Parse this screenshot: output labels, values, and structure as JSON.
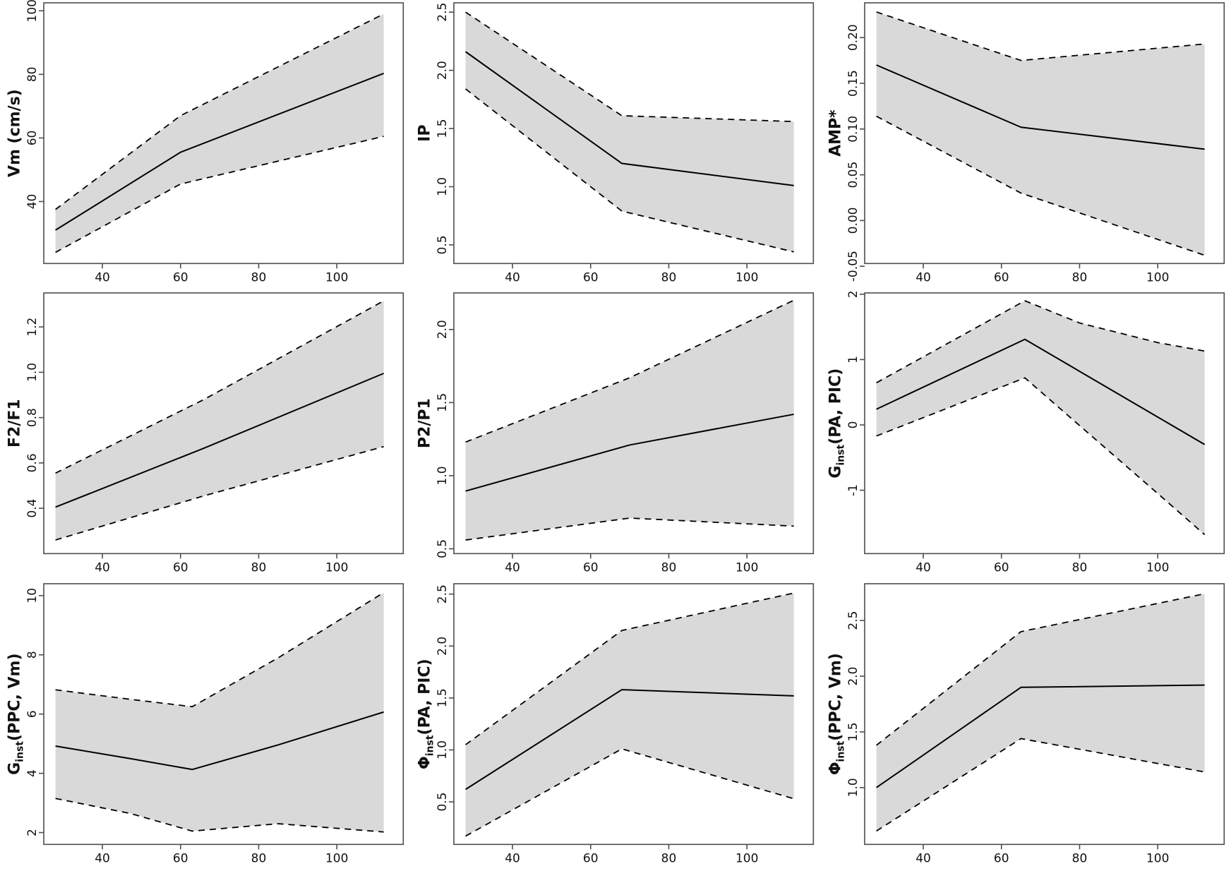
{
  "figure": {
    "title": "",
    "layout": "3x3 grid of effect plots with confidence bands",
    "background": "#ffffff",
    "band_fill": "#d9d9d9",
    "line_color": "#000000",
    "frame_color": "#4d4d4d",
    "text_color": "#111111",
    "grid": "off",
    "legend": "none",
    "x_tick_values": [
      40,
      60,
      80,
      100
    ],
    "x_tick_labels": [
      "40",
      "60",
      "80",
      "100"
    ]
  },
  "chart_data": [
    {
      "id": "vm_cms",
      "type": "line",
      "ylabel": "Vm (cm/s)",
      "ylabel_parts": [
        {
          "t": "Vm (cm/s)",
          "sub": false
        }
      ],
      "x": [
        28,
        60,
        112
      ],
      "series": [
        {
          "name": "estimate",
          "style": "solid",
          "values": [
            31,
            55.5,
            80.3
          ]
        },
        {
          "name": "upper-ci",
          "style": "dashed",
          "values": [
            37.5,
            67,
            99
          ]
        },
        {
          "name": "lower-ci",
          "style": "dashed",
          "values": [
            24,
            45.5,
            60.5
          ]
        }
      ],
      "band": true,
      "xlim": [
        25,
        117
      ],
      "ylim": [
        20.5,
        102.5
      ],
      "xticks": [
        40,
        60,
        80,
        100
      ],
      "ytick_values": [
        40,
        60,
        80,
        100
      ],
      "ytick_labels": [
        "40",
        "60",
        "80",
        "100"
      ]
    },
    {
      "id": "ip",
      "type": "line",
      "ylabel": "IP",
      "ylabel_parts": [
        {
          "t": "IP",
          "sub": false
        }
      ],
      "x": [
        28,
        68,
        112
      ],
      "series": [
        {
          "name": "estimate",
          "style": "solid",
          "values": [
            2.16,
            1.2,
            1.01
          ]
        },
        {
          "name": "upper-ci",
          "style": "dashed",
          "values": [
            2.5,
            1.61,
            1.56
          ]
        },
        {
          "name": "lower-ci",
          "style": "dashed",
          "values": [
            1.84,
            0.79,
            0.44
          ]
        }
      ],
      "band": true,
      "xlim": [
        25,
        117
      ],
      "ylim": [
        0.34,
        2.58
      ],
      "xticks": [
        40,
        60,
        80,
        100
      ],
      "ytick_values": [
        0.5,
        1.0,
        1.5,
        2.0,
        2.5
      ],
      "ytick_labels": [
        "0.5",
        "1.0",
        "1.5",
        "2.0",
        "2.5"
      ]
    },
    {
      "id": "amp_star",
      "type": "line",
      "ylabel": "AMP*",
      "ylabel_parts": [
        {
          "t": "AMP*",
          "sub": false
        }
      ],
      "x": [
        28,
        65,
        112
      ],
      "series": [
        {
          "name": "estimate",
          "style": "solid",
          "values": [
            0.17,
            0.102,
            0.078
          ]
        },
        {
          "name": "upper-ci",
          "style": "dashed",
          "values": [
            0.228,
            0.175,
            0.193
          ]
        },
        {
          "name": "lower-ci",
          "style": "dashed",
          "values": [
            0.114,
            0.03,
            -0.038
          ]
        }
      ],
      "band": true,
      "xlim": [
        25,
        117
      ],
      "ylim": [
        -0.047,
        0.238
      ],
      "xticks": [
        40,
        60,
        80,
        100
      ],
      "ytick_values": [
        -0.05,
        0.0,
        0.05,
        0.1,
        0.15,
        0.2
      ],
      "ytick_labels": [
        "-0.05",
        "0.00",
        "0.05",
        "0.10",
        "0.15",
        "0.20"
      ]
    },
    {
      "id": "f2_f1",
      "type": "line",
      "ylabel": "F2/F1",
      "ylabel_parts": [
        {
          "t": "F2/F1",
          "sub": false
        }
      ],
      "x": [
        28,
        66,
        112
      ],
      "series": [
        {
          "name": "estimate",
          "style": "solid",
          "values": [
            0.405,
            0.665,
            0.995
          ]
        },
        {
          "name": "upper-ci",
          "style": "dashed",
          "values": [
            0.555,
            0.88,
            1.315
          ]
        },
        {
          "name": "lower-ci",
          "style": "dashed",
          "values": [
            0.26,
            0.455,
            0.672
          ]
        }
      ],
      "band": true,
      "xlim": [
        25,
        117
      ],
      "ylim": [
        0.2,
        1.35
      ],
      "xticks": [
        40,
        60,
        80,
        100
      ],
      "ytick_values": [
        0.4,
        0.6,
        0.8,
        1.0,
        1.2
      ],
      "ytick_labels": [
        "0.4",
        "0.6",
        "0.8",
        "1.0",
        "1.2"
      ]
    },
    {
      "id": "p2_p1",
      "type": "line",
      "ylabel": "P2/P1",
      "ylabel_parts": [
        {
          "t": "P2/P1",
          "sub": false
        }
      ],
      "x": [
        28,
        70,
        112
      ],
      "series": [
        {
          "name": "estimate",
          "style": "solid",
          "values": [
            0.895,
            1.21,
            1.42
          ]
        },
        {
          "name": "upper-ci",
          "style": "dashed",
          "values": [
            1.23,
            1.67,
            2.2
          ]
        },
        {
          "name": "lower-ci",
          "style": "dashed",
          "values": [
            0.56,
            0.71,
            0.655
          ]
        }
      ],
      "band": true,
      "xlim": [
        25,
        117
      ],
      "ylim": [
        0.467,
        2.25
      ],
      "xticks": [
        40,
        60,
        80,
        100
      ],
      "ytick_values": [
        0.5,
        1.0,
        1.5,
        2.0
      ],
      "ytick_labels": [
        "0.5",
        "1.0",
        "1.5",
        "2.0"
      ]
    },
    {
      "id": "g_inst_pa_pic",
      "type": "line",
      "ylabel": "Ginst(PA, PIC)",
      "ylabel_parts": [
        {
          "t": "G",
          "sub": false
        },
        {
          "t": "inst",
          "sub": true
        },
        {
          "t": "(PA, PIC)",
          "sub": false
        }
      ],
      "x": [
        28,
        66,
        80,
        100,
        112
      ],
      "series": [
        {
          "name": "estimate",
          "style": "solid",
          "values": [
            0.24,
            1.31,
            0.82,
            0.12,
            -0.3
          ]
        },
        {
          "name": "upper-ci",
          "style": "dashed",
          "values": [
            0.645,
            1.9,
            1.56,
            1.26,
            1.13
          ]
        },
        {
          "name": "lower-ci",
          "style": "dashed",
          "values": [
            -0.17,
            0.72,
            -0.01,
            -1.05,
            -1.68
          ]
        }
      ],
      "band": true,
      "xlim": [
        25,
        117
      ],
      "ylim": [
        -1.97,
        2.02
      ],
      "xticks": [
        40,
        60,
        80,
        100
      ],
      "ytick_values": [
        -1,
        0,
        1,
        2
      ],
      "ytick_labels": [
        "-1",
        "0",
        "1",
        "2"
      ]
    },
    {
      "id": "g_inst_ppc_vm",
      "type": "line",
      "ylabel": "Ginst(PPC, Vm)",
      "ylabel_parts": [
        {
          "t": "G",
          "sub": false
        },
        {
          "t": "inst",
          "sub": true
        },
        {
          "t": "(PPC, Vm)",
          "sub": false
        }
      ],
      "x": [
        28,
        47,
        63,
        85,
        112
      ],
      "series": [
        {
          "name": "estimate",
          "style": "solid",
          "values": [
            4.92,
            4.5,
            4.13,
            4.96,
            6.07
          ]
        },
        {
          "name": "upper-ci",
          "style": "dashed",
          "values": [
            6.82,
            6.5,
            6.25,
            7.9,
            10.1
          ]
        },
        {
          "name": "lower-ci",
          "style": "dashed",
          "values": [
            3.15,
            2.65,
            2.05,
            2.3,
            2.02
          ]
        }
      ],
      "band": true,
      "xlim": [
        25,
        117
      ],
      "ylim": [
        1.6,
        10.4
      ],
      "xticks": [
        40,
        60,
        80,
        100
      ],
      "ytick_values": [
        2,
        4,
        6,
        8,
        10
      ],
      "ytick_labels": [
        "2",
        "4",
        "6",
        "8",
        "10"
      ]
    },
    {
      "id": "phi_inst_pa_pic",
      "type": "line",
      "ylabel": "Φinst(PA, PIC)",
      "ylabel_parts": [
        {
          "t": "Φ",
          "sub": false
        },
        {
          "t": "inst",
          "sub": true
        },
        {
          "t": "(PA, PIC)",
          "sub": false
        }
      ],
      "x": [
        28,
        68,
        112
      ],
      "series": [
        {
          "name": "estimate",
          "style": "solid",
          "values": [
            0.62,
            1.58,
            1.52
          ]
        },
        {
          "name": "upper-ci",
          "style": "dashed",
          "values": [
            1.05,
            2.15,
            2.51
          ]
        },
        {
          "name": "lower-ci",
          "style": "dashed",
          "values": [
            0.17,
            1.01,
            0.53
          ]
        }
      ],
      "band": true,
      "xlim": [
        25,
        117
      ],
      "ylim": [
        0.09,
        2.6
      ],
      "xticks": [
        40,
        60,
        80,
        100
      ],
      "ytick_values": [
        0.5,
        1.0,
        1.5,
        2.0,
        2.5
      ],
      "ytick_labels": [
        "0.5",
        "1.0",
        "1.5",
        "2.0",
        "2.5"
      ]
    },
    {
      "id": "phi_inst_ppc_vm",
      "type": "line",
      "ylabel": "Φinst(PPC, Vm)",
      "ylabel_parts": [
        {
          "t": "Φ",
          "sub": false
        },
        {
          "t": "inst",
          "sub": true
        },
        {
          "t": "(PPC, Vm)",
          "sub": false
        }
      ],
      "x": [
        28,
        65,
        112
      ],
      "series": [
        {
          "name": "estimate",
          "style": "solid",
          "values": [
            1.0,
            1.9,
            1.92
          ]
        },
        {
          "name": "upper-ci",
          "style": "dashed",
          "values": [
            1.38,
            2.4,
            2.74
          ]
        },
        {
          "name": "lower-ci",
          "style": "dashed",
          "values": [
            0.61,
            1.44,
            1.14
          ]
        }
      ],
      "band": true,
      "xlim": [
        25,
        117
      ],
      "ylim": [
        0.49,
        2.83
      ],
      "xticks": [
        40,
        60,
        80,
        100
      ],
      "ytick_values": [
        1.0,
        1.5,
        2.0,
        2.5
      ],
      "ytick_labels": [
        "1.0",
        "1.5",
        "2.0",
        "2.5"
      ]
    }
  ]
}
